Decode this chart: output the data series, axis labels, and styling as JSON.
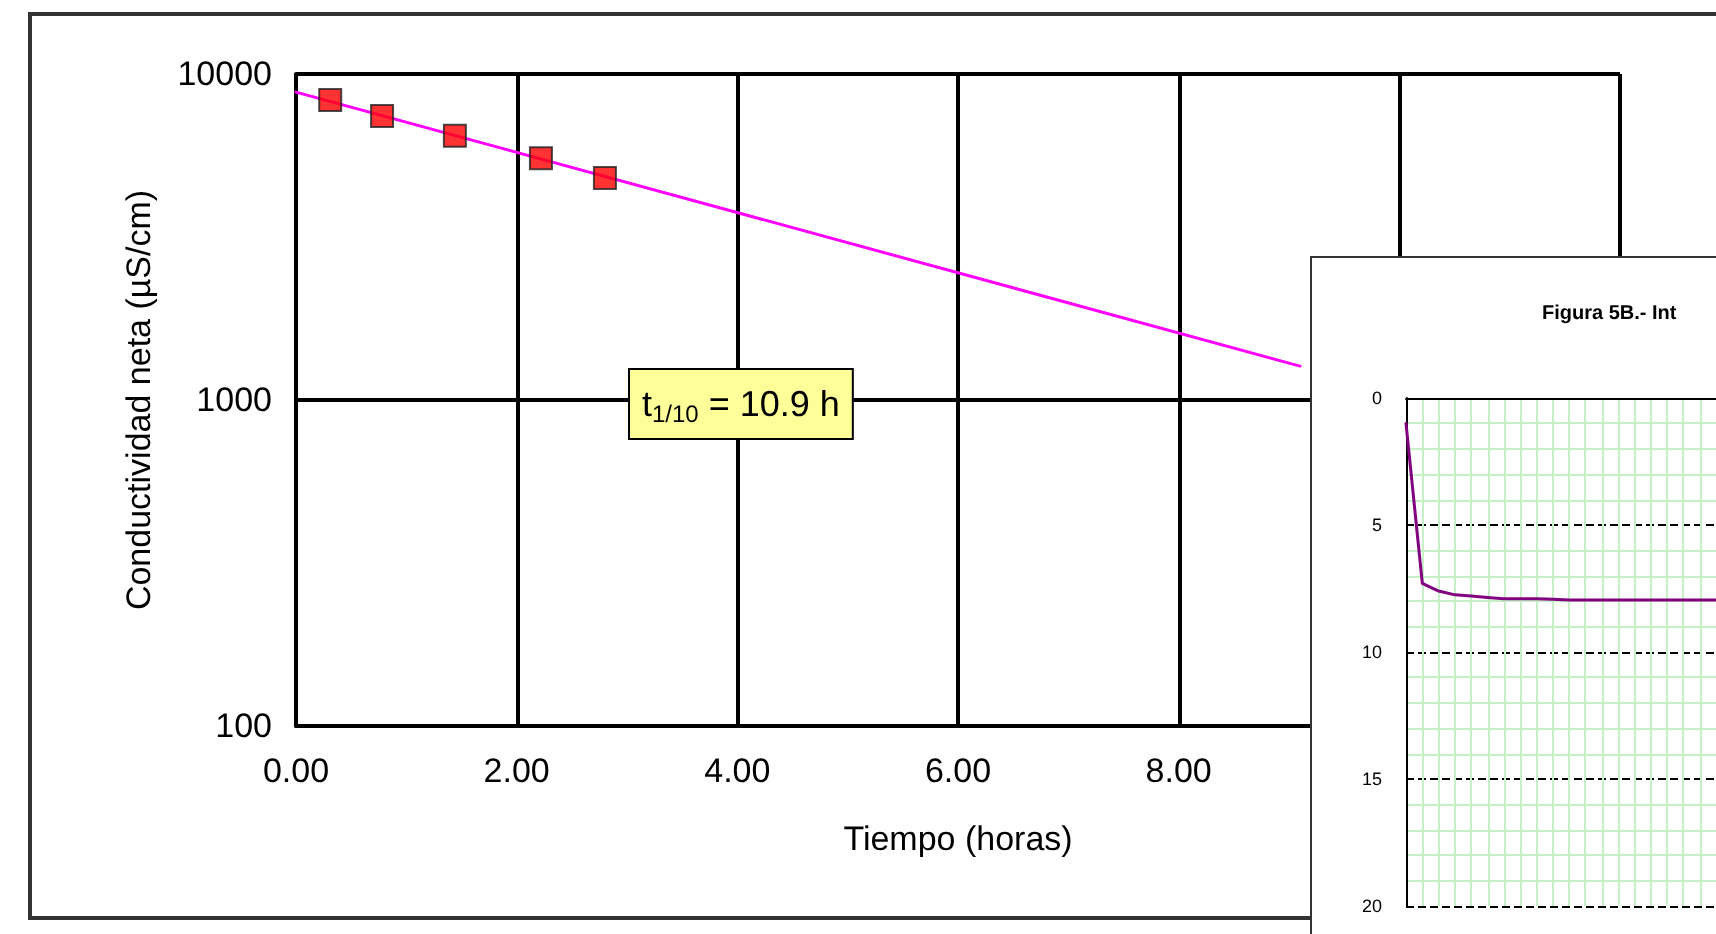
{
  "chart_data": [
    {
      "type": "line",
      "xlabel": "Tiempo (horas)",
      "ylabel": "Conductividad neta (µS/cm)",
      "log": "y",
      "grid": true,
      "xlim": [
        0,
        12
      ],
      "xticks": [
        {
          "value": 0,
          "label": "0.00"
        },
        {
          "value": 2,
          "label": "2.00"
        },
        {
          "value": 4,
          "label": "4.00"
        },
        {
          "value": 6,
          "label": "6.00"
        },
        {
          "value": 8,
          "label": "8.00"
        },
        {
          "value": 10,
          "label": null
        },
        {
          "value": 12,
          "label": null
        }
      ],
      "ylim": [
        100,
        10000
      ],
      "yticks": [
        100,
        1000,
        10000
      ],
      "annotations": [
        "t$_{1/10}$ = 10.9 h"
      ],
      "series": [
        {
          "type": "line",
          "color": "#ff00ff",
          "marker": "none",
          "x": [
            0,
            9.1
          ],
          "values": [
            8800,
            1270
          ]
        },
        {
          "type": "scatter",
          "color": "#ff0000",
          "marker": "square",
          "x": [
            0.31,
            0.78,
            1.44,
            2.22,
            2.8
          ],
          "values": [
            8320,
            7430,
            6460,
            5520,
            4800
          ]
        }
      ]
    },
    {
      "type": "line",
      "title": "Figura 5B.- Int",
      "grid": true,
      "tick_labels": "y",
      "categories": [
        null,
        null,
        null,
        null,
        null,
        null,
        null,
        null,
        null,
        null,
        null,
        null,
        null,
        null,
        null,
        null,
        null,
        null,
        null,
        null
      ],
      "ylim": [
        20,
        0
      ],
      "yticks": [
        0,
        5,
        10,
        15,
        20
      ],
      "series": [
        {
          "color": "#800080",
          "marker": "none",
          "values": [
            1,
            7.3,
            7.6,
            7.75,
            7.8,
            7.85,
            7.9,
            7.9,
            7.9,
            7.92,
            7.95,
            7.95,
            7.95,
            7.95,
            7.95,
            7.95,
            7.95,
            7.95,
            7.95,
            7.95
          ]
        }
      ]
    }
  ]
}
